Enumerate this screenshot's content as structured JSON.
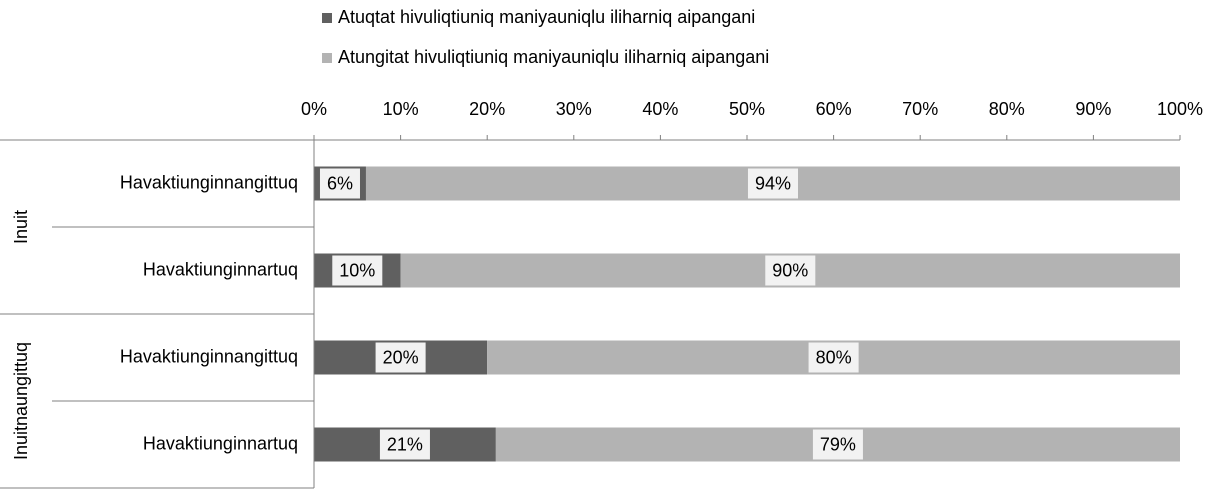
{
  "chart_data": {
    "type": "stacked-bar-horizontal",
    "groups": [
      {
        "name": "Inuit",
        "categories": [
          "Havaktiunginnangittuq",
          "Havaktiunginnartuq"
        ]
      },
      {
        "name": "Inuitnaungittuq",
        "categories": [
          "Havaktiunginnangittuq",
          "Havaktiunginnartuq"
        ]
      }
    ],
    "series": [
      {
        "name": "Atuqtat hivuliqtiuniq maniyauniqlu iliharniq aipangani",
        "color": "#606060",
        "values": [
          6,
          10,
          20,
          21
        ],
        "value_labels": [
          "6%",
          "10%",
          "20%",
          "21%"
        ]
      },
      {
        "name": "Atungitat hivuliqtiuniq maniyauniqlu iliharniq aipangani",
        "color": "#b3b3b3",
        "values": [
          94,
          90,
          80,
          79
        ],
        "value_labels": [
          "94%",
          "90%",
          "80%",
          "79%"
        ]
      }
    ],
    "xlim": [
      0,
      100
    ],
    "xticks": [
      {
        "value": 0,
        "label": "0%"
      },
      {
        "value": 10,
        "label": "10%"
      },
      {
        "value": 20,
        "label": "20%"
      },
      {
        "value": 30,
        "label": "30%"
      },
      {
        "value": 40,
        "label": "40%"
      },
      {
        "value": 50,
        "label": "50%"
      },
      {
        "value": 60,
        "label": "60%"
      },
      {
        "value": 70,
        "label": "70%"
      },
      {
        "value": 80,
        "label": "80%"
      },
      {
        "value": 90,
        "label": "90%"
      },
      {
        "value": 100,
        "label": "100%"
      }
    ],
    "legend": "top"
  }
}
